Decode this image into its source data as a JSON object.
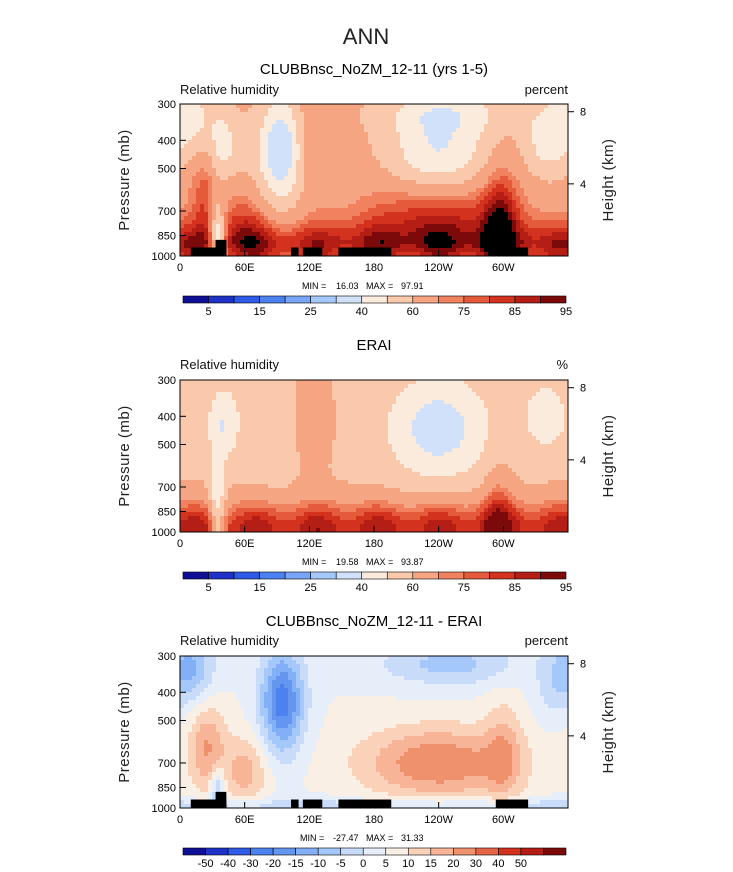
{
  "figure": {
    "title": "ANN"
  },
  "colors": {
    "rh_levels": [
      "#0f0f96",
      "#1e32c8",
      "#2d5ae6",
      "#4b82f0",
      "#78a5f5",
      "#a5c8fa",
      "#d2e1fa",
      "#faebdc",
      "#fac8aa",
      "#f5a582",
      "#f0825f",
      "#e65a3c",
      "#d2321e",
      "#b41e14",
      "#7d0a0a"
    ],
    "diff_levels": [
      "#0f0f96",
      "#1e32c8",
      "#2d5ae6",
      "#4b82f0",
      "#6496f0",
      "#82aff5",
      "#a5c8fa",
      "#c8dcfa",
      "#e6eefa",
      "#faefe4",
      "#fad2b9",
      "#f7b496",
      "#f0916e",
      "#e66446",
      "#d2321e",
      "#b41e14",
      "#7d0a0a"
    ],
    "topography": "#000000"
  },
  "chart_data": [
    {
      "type": "heatmap",
      "title": "CLUBBnsc_NoZM_12-11 (yrs 1-5)",
      "left_label": "Relative humidity",
      "right_label": "percent",
      "xlabel": "",
      "ylabel": "Pressure (mb)",
      "y2label": "Height (km)",
      "x_tick_labels": [
        "0",
        "60E",
        "120E",
        "180",
        "120W",
        "60W"
      ],
      "x_ticks_deg": [
        0,
        60,
        120,
        180,
        240,
        300
      ],
      "xlim": [
        0,
        360
      ],
      "y_tick_labels": [
        "300",
        "400",
        "500",
        "700",
        "850",
        "1000"
      ],
      "y_ticks": [
        300,
        400,
        500,
        700,
        850,
        1000
      ],
      "ylim": [
        300,
        1000
      ],
      "y2_tick_labels": [
        "8",
        "4"
      ],
      "y2_ticks_km": [
        8,
        4
      ],
      "stats": {
        "min_label": "MIN =",
        "min": "16.03",
        "max_label": "MAX =",
        "max": "97.91"
      },
      "colorbar_labels": [
        "5",
        "15",
        "25",
        "40",
        "60",
        "75",
        "85",
        "95"
      ],
      "colorbar_levels": [
        0,
        5,
        10,
        15,
        20,
        25,
        30,
        40,
        50,
        60,
        70,
        75,
        80,
        85,
        90,
        95,
        100
      ],
      "topography_blocks": [
        [
          10,
          43,
          935,
          1000
        ],
        [
          33,
          43,
          880,
          1000
        ],
        [
          103,
          110,
          935,
          1000
        ],
        [
          114,
          132,
          935,
          1000
        ],
        [
          147,
          196,
          935,
          1000
        ],
        [
          293,
          323,
          935,
          1000
        ]
      ],
      "field_kind": "model"
    },
    {
      "type": "heatmap",
      "title": "ERAI",
      "left_label": "Relative humidity",
      "right_label": "%",
      "xlabel": "",
      "ylabel": "Pressure (mb)",
      "y2label": "Height (km)",
      "x_tick_labels": [
        "0",
        "60E",
        "120E",
        "180",
        "120W",
        "60W"
      ],
      "x_ticks_deg": [
        0,
        60,
        120,
        180,
        240,
        300
      ],
      "xlim": [
        0,
        360
      ],
      "y_tick_labels": [
        "300",
        "400",
        "500",
        "700",
        "850",
        "1000"
      ],
      "y_ticks": [
        300,
        400,
        500,
        700,
        850,
        1000
      ],
      "ylim": [
        300,
        1000
      ],
      "y2_tick_labels": [
        "8",
        "4"
      ],
      "y2_ticks_km": [
        8,
        4
      ],
      "stats": {
        "min_label": "MIN =",
        "min": "19.58",
        "max_label": "MAX =",
        "max": "93.87"
      },
      "colorbar_labels": [
        "5",
        "15",
        "25",
        "40",
        "60",
        "75",
        "85",
        "95"
      ],
      "colorbar_levels": [
        0,
        5,
        10,
        15,
        20,
        25,
        30,
        40,
        50,
        60,
        70,
        75,
        80,
        85,
        90,
        95,
        100
      ],
      "topography_blocks": [],
      "field_kind": "obs"
    },
    {
      "type": "heatmap",
      "title": "CLUBBnsc_NoZM_12-11 - ERAI",
      "left_label": "Relative humidity",
      "right_label": "percent",
      "xlabel": "",
      "ylabel": "Pressure (mb)",
      "y2label": "Height (km)",
      "x_tick_labels": [
        "0",
        "60E",
        "120E",
        "180",
        "120W",
        "60W"
      ],
      "x_ticks_deg": [
        0,
        60,
        120,
        180,
        240,
        300
      ],
      "xlim": [
        0,
        360
      ],
      "y_tick_labels": [
        "300",
        "400",
        "500",
        "700",
        "850",
        "1000"
      ],
      "y_ticks": [
        300,
        400,
        500,
        700,
        850,
        1000
      ],
      "ylim": [
        300,
        1000
      ],
      "y2_tick_labels": [
        "8",
        "4"
      ],
      "y2_ticks_km": [
        8,
        4
      ],
      "stats": {
        "min_label": "MIN =",
        "min": "-27.47",
        "max_label": "MAX =",
        "max": "31.33"
      },
      "colorbar_labels": [
        "-50",
        "-40",
        "-30",
        "-20",
        "-15",
        "-10",
        "-5",
        "0",
        "5",
        "10",
        "15",
        "20",
        "30",
        "40",
        "50"
      ],
      "colorbar_levels": [
        -60,
        -50,
        -40,
        -30,
        -20,
        -15,
        -10,
        -5,
        0,
        5,
        10,
        15,
        20,
        30,
        40,
        50,
        60
      ],
      "topography_blocks": [
        [
          10,
          43,
          935,
          1000
        ],
        [
          33,
          43,
          880,
          1000
        ],
        [
          103,
          110,
          935,
          1000
        ],
        [
          114,
          132,
          935,
          1000
        ],
        [
          147,
          196,
          935,
          1000
        ],
        [
          293,
          323,
          935,
          1000
        ]
      ],
      "field_kind": "diff"
    }
  ]
}
